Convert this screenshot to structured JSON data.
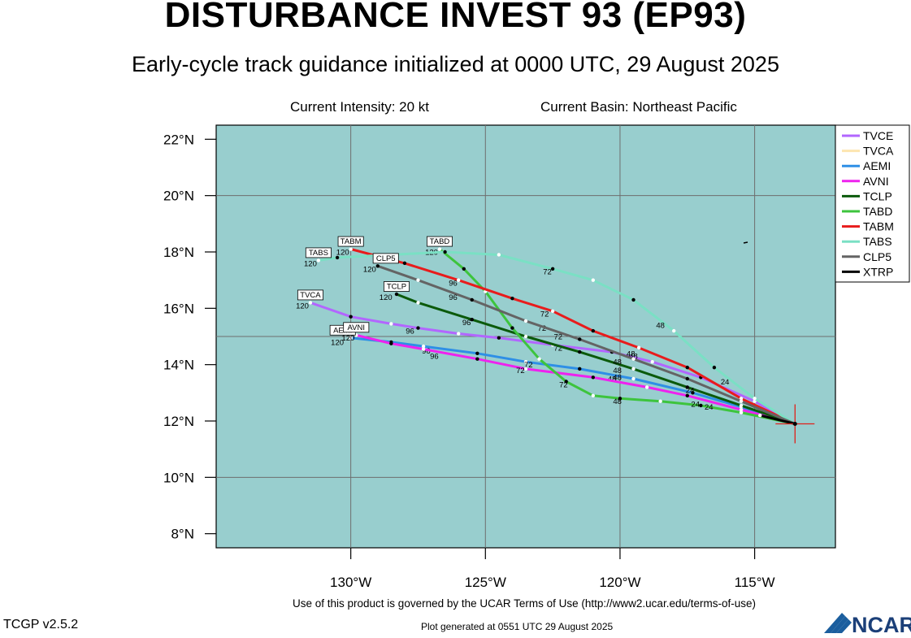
{
  "header": {
    "title": "DISTURBANCE INVEST 93 (EP93)",
    "subtitle": "Early-cycle track guidance initialized at 0000 UTC, 29 August 2025",
    "intensity": "Current Intensity: 20 kt",
    "basin": "Current Basin: Northeast Pacific"
  },
  "footer": {
    "terms": "Use of this product is governed by the UCAR Terms of Use (http://www2.ucar.edu/terms-of-use)",
    "version": "TCGP v2.5.2",
    "generated": "Plot generated at 0551 UTC   29 August 2025",
    "logo_text": "NCAR"
  },
  "colors": {
    "ocean": "#98cece",
    "grid": "#6e6e6e"
  },
  "chart_data": {
    "type": "line",
    "xlim": [
      -135,
      -112
    ],
    "ylim": [
      7.5,
      22.5
    ],
    "x_ticks": [
      {
        "value": -130,
        "label": "130°W"
      },
      {
        "value": -125,
        "label": "125°W"
      },
      {
        "value": -120,
        "label": "120°W"
      },
      {
        "value": -115,
        "label": "115°W"
      }
    ],
    "y_ticks": [
      {
        "value": 8,
        "label": "8°N"
      },
      {
        "value": 10,
        "label": "10°N"
      },
      {
        "value": 12,
        "label": "12°N"
      },
      {
        "value": 14,
        "label": "14°N"
      },
      {
        "value": 16,
        "label": "16°N"
      },
      {
        "value": 18,
        "label": "18°N"
      },
      {
        "value": 20,
        "label": "20°N"
      },
      {
        "value": 22,
        "label": "22°N"
      }
    ],
    "grid_lon": [
      -130,
      -125,
      -120,
      -115
    ],
    "grid_lat": [
      10,
      15,
      20
    ],
    "initial_position": {
      "lon": -113.5,
      "lat": 11.9
    },
    "legend_position": "right",
    "series": [
      {
        "name": "TVCE",
        "color": "#b266ff",
        "points": [
          [
            -113.5,
            11.9
          ],
          [
            -115,
            12.7
          ],
          [
            -117,
            13.55
          ],
          [
            -118.8,
            14.1
          ],
          [
            -120.3,
            14.45
          ],
          [
            -122.5,
            14.7
          ],
          [
            -124.5,
            14.95
          ],
          [
            -126,
            15.1
          ],
          [
            -127.5,
            15.3
          ],
          [
            -128.5,
            15.45
          ],
          [
            -130,
            15.7
          ],
          [
            -131.5,
            16.2
          ]
        ],
        "labels": [
          {
            "text": "48",
            "lon": -119.6,
            "lat": 14.3
          },
          {
            "text": "72",
            "lon": -122.3,
            "lat": 14.5
          },
          {
            "text": "96",
            "lon": -127.8,
            "lat": 15.1
          },
          {
            "text": "120",
            "lon": -131.8,
            "lat": 16.0
          }
        ],
        "box": {
          "text": "TVCA",
          "lon": -131.5,
          "lat": 16.3
        }
      },
      {
        "name": "TVCA",
        "color": "#fde5b0",
        "points": [],
        "labels": [],
        "box": null
      },
      {
        "name": "AEMI",
        "color": "#2e8fe6",
        "points": [
          [
            -113.5,
            11.9
          ],
          [
            -115.5,
            12.5
          ],
          [
            -117.3,
            13.0
          ],
          [
            -119.5,
            13.5
          ],
          [
            -121.5,
            13.85
          ],
          [
            -123.5,
            14.1
          ],
          [
            -125.3,
            14.4
          ],
          [
            -127.3,
            14.65
          ],
          [
            -128.5,
            14.8
          ],
          [
            -130,
            14.95
          ]
        ],
        "labels": [
          {
            "text": "48",
            "lon": -120.3,
            "lat": 13.4
          },
          {
            "text": "72",
            "lon": -123.4,
            "lat": 13.9
          },
          {
            "text": "96",
            "lon": -127.2,
            "lat": 14.4
          },
          {
            "text": "120",
            "lon": -130.5,
            "lat": 14.7
          }
        ],
        "box": {
          "text": "AEMI",
          "lon": -130.3,
          "lat": 15.05
        }
      },
      {
        "name": "AVNI",
        "color": "#ee22ee",
        "points": [
          [
            -113.5,
            11.9
          ],
          [
            -115.5,
            12.4
          ],
          [
            -117.5,
            12.9
          ],
          [
            -119,
            13.2
          ],
          [
            -121,
            13.55
          ],
          [
            -123.5,
            13.85
          ],
          [
            -125.3,
            14.2
          ],
          [
            -127.3,
            14.55
          ],
          [
            -128.5,
            14.75
          ],
          [
            -129.8,
            15.05
          ]
        ],
        "labels": [
          {
            "text": "48",
            "lon": -120.1,
            "lat": 13.45
          },
          {
            "text": "72",
            "lon": -123.7,
            "lat": 13.7
          },
          {
            "text": "96",
            "lon": -126.9,
            "lat": 14.2
          },
          {
            "text": "120",
            "lon": -130.1,
            "lat": 14.85
          }
        ],
        "box": {
          "text": "AVNI",
          "lon": -129.8,
          "lat": 15.15
        }
      },
      {
        "name": "TCLP",
        "color": "#0b5a0b",
        "points": [
          [
            -113.5,
            11.9
          ],
          [
            -115.5,
            12.55
          ],
          [
            -117.5,
            13.2
          ],
          [
            -119.5,
            13.85
          ],
          [
            -121.5,
            14.45
          ],
          [
            -123.5,
            15.0
          ],
          [
            -125.5,
            15.6
          ],
          [
            -127.5,
            16.2
          ],
          [
            -128.3,
            16.5
          ]
        ],
        "labels": [
          {
            "text": "48",
            "lon": -120.1,
            "lat": 14.0
          },
          {
            "text": "72",
            "lon": -122.9,
            "lat": 15.2
          },
          {
            "text": "96",
            "lon": -125.7,
            "lat": 15.4
          },
          {
            "text": "120",
            "lon": -128.7,
            "lat": 16.3
          }
        ],
        "box": {
          "text": "TCLP",
          "lon": -128.3,
          "lat": 16.6
        }
      },
      {
        "name": "TABD",
        "color": "#3dc43d",
        "points": [
          [
            -113.5,
            11.9
          ],
          [
            -115.5,
            12.3
          ],
          [
            -117,
            12.55
          ],
          [
            -118.5,
            12.7
          ],
          [
            -120,
            12.8
          ],
          [
            -121,
            12.9
          ],
          [
            -122,
            13.4
          ],
          [
            -123,
            14.2
          ],
          [
            -124,
            15.3
          ],
          [
            -125,
            16.6
          ],
          [
            -125.8,
            17.4
          ],
          [
            -126.7,
            18.1
          ]
        ],
        "labels": [
          {
            "text": "24",
            "lon": -116.7,
            "lat": 12.4
          },
          {
            "text": "48",
            "lon": -120.1,
            "lat": 12.6
          },
          {
            "text": "72",
            "lon": -122.1,
            "lat": 13.2
          },
          {
            "text": "120",
            "lon": -127.0,
            "lat": 17.9
          }
        ],
        "box": {
          "text": "TABD",
          "lon": -126.7,
          "lat": 18.2
        }
      },
      {
        "name": "TABM",
        "color": "#e81c1c",
        "points": [
          [
            -113.5,
            11.9
          ],
          [
            -115.5,
            12.8
          ],
          [
            -117.5,
            13.9
          ],
          [
            -119.3,
            14.6
          ],
          [
            -121,
            15.2
          ],
          [
            -122.5,
            15.9
          ],
          [
            -124,
            16.35
          ],
          [
            -126,
            17.0
          ],
          [
            -128,
            17.6
          ],
          [
            -130,
            18.1
          ]
        ],
        "labels": [
          {
            "text": "24",
            "lon": -116.1,
            "lat": 13.3
          },
          {
            "text": "48",
            "lon": -119.5,
            "lat": 14.2
          },
          {
            "text": "72",
            "lon": -122.8,
            "lat": 15.7
          },
          {
            "text": "96",
            "lon": -126.2,
            "lat": 16.8
          },
          {
            "text": "120",
            "lon": -130.3,
            "lat": 17.9
          }
        ],
        "box": {
          "text": "TABM",
          "lon": -130,
          "lat": 18.2
        }
      },
      {
        "name": "TABS",
        "color": "#7ae0c4",
        "points": [
          [
            -113.5,
            11.9
          ],
          [
            -115,
            12.8
          ],
          [
            -116.5,
            13.9
          ],
          [
            -118,
            15.2
          ],
          [
            -119.5,
            16.3
          ],
          [
            -121,
            17.0
          ],
          [
            -122.5,
            17.4
          ],
          [
            -124.5,
            17.9
          ],
          [
            -126.5,
            18.0
          ],
          [
            -128.5,
            17.9
          ],
          [
            -130.5,
            17.8
          ],
          [
            -131.2,
            17.7
          ]
        ],
        "labels": [
          {
            "text": "48",
            "lon": -118.5,
            "lat": 15.3
          },
          {
            "text": "72",
            "lon": -122.7,
            "lat": 17.2
          },
          {
            "text": "120",
            "lon": -131.5,
            "lat": 17.5
          }
        ],
        "box": {
          "text": "TABS",
          "lon": -131.2,
          "lat": 17.8
        }
      },
      {
        "name": "CLP5",
        "color": "#646464",
        "points": [
          [
            -113.5,
            11.9
          ],
          [
            -115.5,
            12.7
          ],
          [
            -117.5,
            13.5
          ],
          [
            -119.5,
            14.2
          ],
          [
            -121.5,
            14.9
          ],
          [
            -123.5,
            15.55
          ],
          [
            -125.5,
            16.3
          ],
          [
            -127.5,
            17.0
          ],
          [
            -129,
            17.5
          ]
        ],
        "labels": [
          {
            "text": "24",
            "lon": -117.4,
            "lat": 13.0
          },
          {
            "text": "48",
            "lon": -120.1,
            "lat": 13.7
          },
          {
            "text": "72",
            "lon": -122.3,
            "lat": 14.9
          },
          {
            "text": "96",
            "lon": -126.2,
            "lat": 16.3
          },
          {
            "text": "120",
            "lon": -129.3,
            "lat": 17.3
          }
        ],
        "box": {
          "text": "CLP5",
          "lon": -128.7,
          "lat": 17.6
        }
      },
      {
        "name": "XTRP",
        "color": "#000000",
        "points": [
          [
            -113.5,
            11.9
          ],
          [
            -114.8,
            12.2
          ]
        ],
        "labels": [
          {
            "text": "24",
            "lon": -117.2,
            "lat": 12.5
          }
        ],
        "box": null
      }
    ]
  }
}
